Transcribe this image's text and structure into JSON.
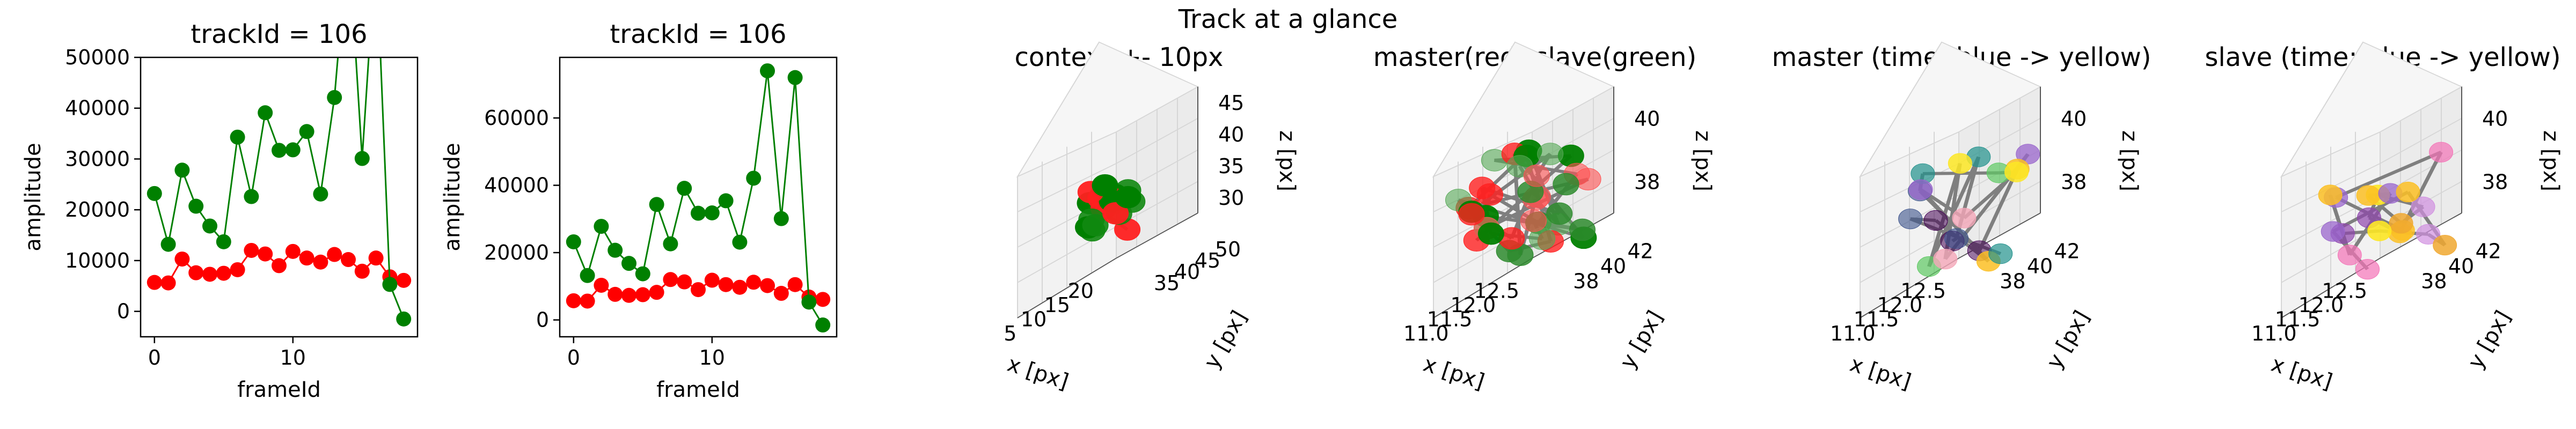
{
  "suptitle": "Track at a glance",
  "chart_data": [
    {
      "type": "line",
      "title": "trackId = 106",
      "xlabel": "frameId",
      "ylabel": "amplitude",
      "xlim": [
        -1,
        19
      ],
      "ylim": [
        -5000,
        50000
      ],
      "xticks": [
        0,
        10
      ],
      "yticks": [
        0,
        10000,
        20000,
        30000,
        40000,
        50000
      ],
      "x": [
        0,
        1,
        2,
        3,
        4,
        5,
        6,
        7,
        8,
        9,
        10,
        11,
        12,
        13,
        14,
        15,
        16,
        17,
        18
      ],
      "series": [
        {
          "color": "#ff0000",
          "values": [
            5700,
            5600,
            10300,
            7600,
            7300,
            7500,
            8200,
            12000,
            11300,
            9000,
            11800,
            10500,
            9700,
            11200,
            10200,
            7900,
            10500,
            6800,
            6100
          ]
        },
        {
          "color": "#008000",
          "values": [
            23200,
            13200,
            27800,
            20700,
            16800,
            13700,
            34300,
            22600,
            39100,
            31700,
            31800,
            35400,
            23100,
            42100,
            74000,
            30100,
            72000,
            5300,
            -1500
          ]
        }
      ]
    },
    {
      "type": "line",
      "title": "trackId = 106",
      "xlabel": "frameId",
      "ylabel": "amplitude",
      "xlim": [
        -1,
        19
      ],
      "ylim": [
        -5000,
        78000
      ],
      "xticks": [
        0,
        10
      ],
      "yticks": [
        0,
        20000,
        40000,
        60000
      ],
      "x": [
        0,
        1,
        2,
        3,
        4,
        5,
        6,
        7,
        8,
        9,
        10,
        11,
        12,
        13,
        14,
        15,
        16,
        17,
        18
      ],
      "series": [
        {
          "color": "#ff0000",
          "values": [
            5700,
            5600,
            10300,
            7600,
            7300,
            7500,
            8200,
            12000,
            11300,
            9000,
            11800,
            10500,
            9700,
            11200,
            10200,
            7900,
            10500,
            6800,
            6100
          ]
        },
        {
          "color": "#008000",
          "values": [
            23200,
            13200,
            27800,
            20700,
            16800,
            13700,
            34300,
            22600,
            39100,
            31700,
            31800,
            35400,
            23100,
            42100,
            74000,
            30100,
            72000,
            5300,
            -1500
          ]
        }
      ]
    },
    {
      "type": "scatter",
      "title": "context +- 10px",
      "xlabel": "x [px]",
      "ylabel": "y [px]",
      "zlabel": "z [px]",
      "xticks": [
        "5",
        "10",
        "15",
        "20"
      ],
      "yticks": [
        "35",
        "40",
        "45",
        "50"
      ],
      "zticks": [
        "30",
        "35",
        "40",
        "45"
      ]
    },
    {
      "type": "scatter",
      "title": "master(red) slave(green)",
      "xlabel": "x [px]",
      "ylabel": "y [px]",
      "zlabel": "z [px]",
      "xticks": [
        "11.0",
        "11.5",
        "12.0",
        "12.5"
      ],
      "yticks": [
        "38",
        "40",
        "42"
      ],
      "zticks": [
        "38",
        "40"
      ]
    },
    {
      "type": "scatter",
      "title": "master (time: blue -> yellow)",
      "xlabel": "x [px]",
      "ylabel": "y [px]",
      "zlabel": "z [px]",
      "xticks": [
        "11.0",
        "11.5",
        "12.0",
        "12.5"
      ],
      "yticks": [
        "38",
        "40",
        "42"
      ],
      "zticks": [
        "38",
        "40"
      ]
    },
    {
      "type": "scatter",
      "title": "slave (time: blue -> yellow)",
      "xlabel": "x [px]",
      "ylabel": "y [px]",
      "zlabel": "z [px]",
      "xticks": [
        "11.0",
        "11.5",
        "12.0",
        "12.5"
      ],
      "yticks": [
        "38",
        "40",
        "42"
      ],
      "zticks": [
        "38",
        "40"
      ]
    }
  ]
}
